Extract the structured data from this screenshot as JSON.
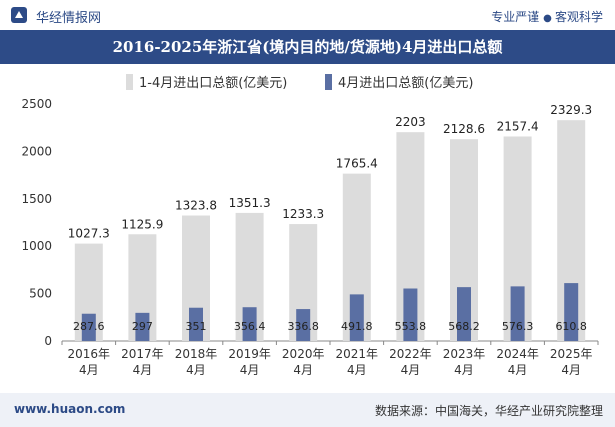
{
  "header": {
    "brand": "华经情报网",
    "slogan_left": "专业严谨",
    "slogan_right": "客观科学"
  },
  "title": "2016-2025年浙江省(境内目的地/货源地)4月进出口总额",
  "footer": {
    "website": "www.huaon.com",
    "source": "数据来源：中国海关，华经产业研究院整理"
  },
  "colors": {
    "title_bg": "#2d4b87",
    "series_total": "#dcdcdc",
    "series_april": "#5a6fa3",
    "footer_bg": "#eef1f7"
  },
  "chart_data": {
    "type": "bar",
    "categories": [
      "2016年\n4月",
      "2017年\n4月",
      "2018年\n4月",
      "2019年\n4月",
      "2020年\n4月",
      "2021年\n4月",
      "2022年\n4月",
      "2023年\n4月",
      "2024年\n4月",
      "2025年\n4月"
    ],
    "series": [
      {
        "name": "1-4月进出口总额(亿美元)",
        "values": [
          1027.3,
          1125.9,
          1323.8,
          1351.3,
          1233.3,
          1765.4,
          2203,
          2128.6,
          2157.4,
          2329.3
        ]
      },
      {
        "name": "4月进出口总额(亿美元)",
        "values": [
          287.6,
          297,
          351,
          356.4,
          336.8,
          491.8,
          553.8,
          568.2,
          576.3,
          610.8
        ]
      }
    ],
    "ylim": [
      0,
      2500
    ],
    "yticks": [
      0,
      500,
      1000,
      1500,
      2000,
      2500
    ],
    "legend_position": "top",
    "grid": false
  }
}
